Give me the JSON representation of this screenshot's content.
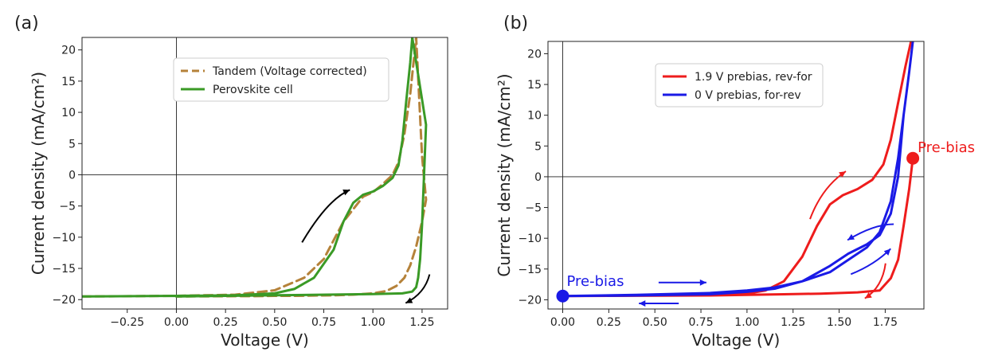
{
  "chart_data": [
    {
      "panel_label": "(a)",
      "type": "line",
      "xlabel": "Voltage (V)",
      "ylabel": "Current density (mA/cm²)",
      "xlim": [
        -0.48,
        1.38
      ],
      "ylim": [
        -21.5,
        22
      ],
      "xticks": [
        -0.25,
        0.0,
        0.25,
        0.5,
        0.75,
        1.0,
        1.25
      ],
      "xtick_labels": [
        "−0.25",
        "0.00",
        "0.25",
        "0.50",
        "0.75",
        "1.00",
        "1.25"
      ],
      "yticks": [
        -20,
        -15,
        -10,
        -5,
        0,
        5,
        10,
        15,
        20
      ],
      "ytick_labels": [
        "−20",
        "−15",
        "−10",
        "−5",
        "0",
        "5",
        "10",
        "15",
        "20"
      ],
      "legend_position": "top-center",
      "series": [
        {
          "name": "Tandem (Voltage corrected)",
          "color": "#b5823a",
          "dash": true,
          "x": [
            -0.48,
            0.0,
            0.3,
            0.5,
            0.65,
            0.75,
            0.85,
            0.95,
            1.0,
            1.05,
            1.08,
            1.1,
            1.13,
            1.16,
            1.19,
            1.22,
            1.25,
            1.27,
            1.25,
            1.22,
            1.19,
            1.16,
            1.12,
            1.07,
            1.0,
            0.9,
            0.8,
            0.7,
            0.6,
            0.5,
            0.4,
            0.3,
            0.0
          ],
          "y": [
            -19.5,
            -19.4,
            -19.2,
            -18.5,
            -16.5,
            -13.5,
            -7.5,
            -3.5,
            -2.8,
            -1.5,
            -0.6,
            0.0,
            2.0,
            6.5,
            13.0,
            22.0,
            3.0,
            -4.0,
            -7.5,
            -11.5,
            -14.5,
            -16.5,
            -17.8,
            -18.6,
            -19.0,
            -19.2,
            -19.3,
            -19.35,
            -19.4,
            -19.4,
            -19.45,
            -19.45,
            -19.5
          ]
        },
        {
          "name": "Perovskite cell",
          "color": "#3a9a26",
          "dash": false,
          "x": [
            -0.48,
            0.0,
            0.3,
            0.5,
            0.6,
            0.7,
            0.8,
            0.85,
            0.9,
            0.95,
            1.0,
            1.05,
            1.1,
            1.13,
            1.15,
            1.17,
            1.19,
            1.2,
            1.27,
            1.26,
            1.25,
            1.24,
            1.23,
            1.22,
            1.2,
            1.15,
            1.0,
            0.5,
            0.0
          ],
          "y": [
            -19.5,
            -19.4,
            -19.3,
            -19.0,
            -18.3,
            -16.5,
            -12.0,
            -7.5,
            -4.5,
            -3.2,
            -2.7,
            -1.8,
            -0.5,
            1.5,
            5.5,
            12.0,
            18.0,
            22.0,
            8.0,
            0.0,
            -8.0,
            -13.5,
            -16.5,
            -18.0,
            -18.7,
            -19.0,
            -19.1,
            -19.3,
            -19.5
          ]
        }
      ],
      "annotations": [
        {
          "type": "arrow",
          "direction": "up-right",
          "color": "#000000",
          "near": [
            0.85,
            -6.5
          ]
        },
        {
          "type": "arrow",
          "direction": "down-left",
          "color": "#000000",
          "near": [
            1.28,
            -18.0
          ]
        }
      ]
    },
    {
      "panel_label": "(b)",
      "type": "line",
      "xlabel": "Voltage (V)",
      "ylabel": "Current density (mA/cm²)",
      "xlim": [
        -0.08,
        1.96
      ],
      "ylim": [
        -21.5,
        22
      ],
      "xticks": [
        0.0,
        0.25,
        0.5,
        0.75,
        1.0,
        1.25,
        1.5,
        1.75
      ],
      "xtick_labels": [
        "0.00",
        "0.25",
        "0.50",
        "0.75",
        "1.00",
        "1.25",
        "1.50",
        "1.75"
      ],
      "yticks": [
        -20,
        -15,
        -10,
        -5,
        0,
        5,
        10,
        15,
        20
      ],
      "ytick_labels": [
        "−20",
        "−15",
        "−10",
        "−5",
        "0",
        "5",
        "10",
        "15",
        "20"
      ],
      "legend_position": "top-center",
      "series": [
        {
          "name": "1.9 V prebias, rev-for",
          "color": "#ee1c1c",
          "x": [
            1.9,
            1.88,
            1.85,
            1.82,
            1.78,
            1.72,
            1.6,
            1.4,
            1.2,
            1.0,
            0.8,
            0.0,
            0.8,
            1.0,
            1.1,
            1.2,
            1.3,
            1.38,
            1.45,
            1.52,
            1.6,
            1.68,
            1.74,
            1.78,
            1.82,
            1.86,
            1.89
          ],
          "y": [
            3.0,
            -2.0,
            -8.0,
            -13.5,
            -16.5,
            -18.5,
            -18.8,
            -19.0,
            -19.1,
            -19.2,
            -19.3,
            -19.4,
            -19.3,
            -19.0,
            -18.5,
            -17.0,
            -13.0,
            -8.0,
            -4.5,
            -3.0,
            -2.0,
            -0.5,
            2.0,
            6.0,
            12.0,
            18.0,
            22.0
          ]
        },
        {
          "name": "0 V prebias, for-rev",
          "color": "#1a1ae6",
          "x": [
            0.0,
            0.4,
            0.8,
            1.0,
            1.15,
            1.3,
            1.45,
            1.55,
            1.65,
            1.72,
            1.78,
            1.82,
            1.85,
            1.88,
            1.9,
            1.88,
            1.85,
            1.82,
            1.78,
            1.72,
            1.65,
            1.55,
            1.45,
            1.3,
            1.15,
            1.0,
            0.8,
            0.4,
            0.0
          ],
          "y": [
            -19.4,
            -19.2,
            -18.9,
            -18.5,
            -18.0,
            -17.0,
            -15.5,
            -13.5,
            -11.5,
            -9.0,
            -4.0,
            3.0,
            10.0,
            17.0,
            22.0,
            17.0,
            10.0,
            0.0,
            -6.0,
            -9.5,
            -11.0,
            -12.5,
            -14.5,
            -17.0,
            -18.2,
            -18.7,
            -19.1,
            -19.3,
            -19.4
          ]
        }
      ],
      "markers": [
        {
          "label": "Pre-bias",
          "color": "#ee1c1c",
          "x": 1.9,
          "y": 3.0
        },
        {
          "label": "Pre-bias",
          "color": "#1a1ae6",
          "x": 0.0,
          "y": -19.4
        }
      ],
      "annotations": [
        {
          "type": "arrow",
          "color": "#ee1c1c",
          "direction": "up-right",
          "near": [
            1.45,
            -3.0
          ]
        },
        {
          "type": "arrow",
          "color": "#ee1c1c",
          "direction": "down-left",
          "near": [
            1.7,
            -19.0
          ]
        },
        {
          "type": "arrow",
          "color": "#1a1ae6",
          "direction": "left-down",
          "near": [
            1.58,
            -9.0
          ]
        },
        {
          "type": "arrow",
          "color": "#1a1ae6",
          "direction": "up-right",
          "near": [
            1.65,
            -13.0
          ]
        },
        {
          "type": "arrow",
          "color": "#1a1ae6",
          "direction": "right",
          "near": [
            0.65,
            -17.2
          ]
        },
        {
          "type": "arrow",
          "color": "#1a1ae6",
          "direction": "left",
          "near": [
            0.5,
            -20.6
          ]
        }
      ]
    }
  ]
}
